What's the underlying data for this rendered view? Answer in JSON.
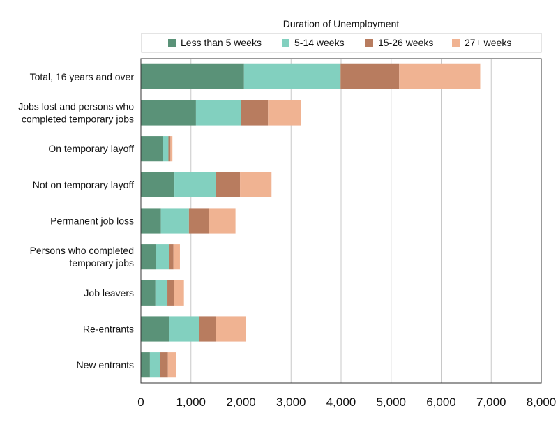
{
  "chart_data": {
    "type": "bar",
    "orientation": "horizontal",
    "stacked": true,
    "legend_title": "Duration of Unemployment",
    "legend_position": "top",
    "categories": [
      [
        "Total, 16 years and over"
      ],
      [
        "Jobs lost and persons who",
        "completed temporary jobs"
      ],
      [
        "On temporary layoff"
      ],
      [
        "Not on temporary layoff"
      ],
      [
        "Permanent job loss"
      ],
      [
        "Persons who completed",
        "temporary jobs"
      ],
      [
        "Job leavers"
      ],
      [
        "Re-entrants"
      ],
      [
        "New entrants"
      ]
    ],
    "series": [
      {
        "name": "Less than 5 weeks",
        "color": "#5a9278",
        "values": [
          2060,
          1100,
          440,
          670,
          400,
          300,
          290,
          560,
          180
        ]
      },
      {
        "name": "5-14 weeks",
        "color": "#82d0bf",
        "values": [
          1930,
          900,
          110,
          830,
          560,
          270,
          240,
          600,
          200
        ]
      },
      {
        "name": "15-26 weeks",
        "color": "#b87c5f",
        "values": [
          1170,
          540,
          40,
          480,
          400,
          80,
          130,
          340,
          160
        ]
      },
      {
        "name": "27+ weeks",
        "color": "#f0b392",
        "values": [
          1620,
          660,
          40,
          630,
          530,
          130,
          200,
          600,
          170
        ]
      }
    ],
    "xlim": [
      0,
      8000
    ],
    "xticks": [
      "0",
      "1,000",
      "2,000",
      "3,000",
      "4,000",
      "5,000",
      "6,000",
      "7,000",
      "8,000"
    ],
    "xtick_values": [
      0,
      1000,
      2000,
      3000,
      4000,
      5000,
      6000,
      7000,
      8000
    ],
    "grid": true
  }
}
